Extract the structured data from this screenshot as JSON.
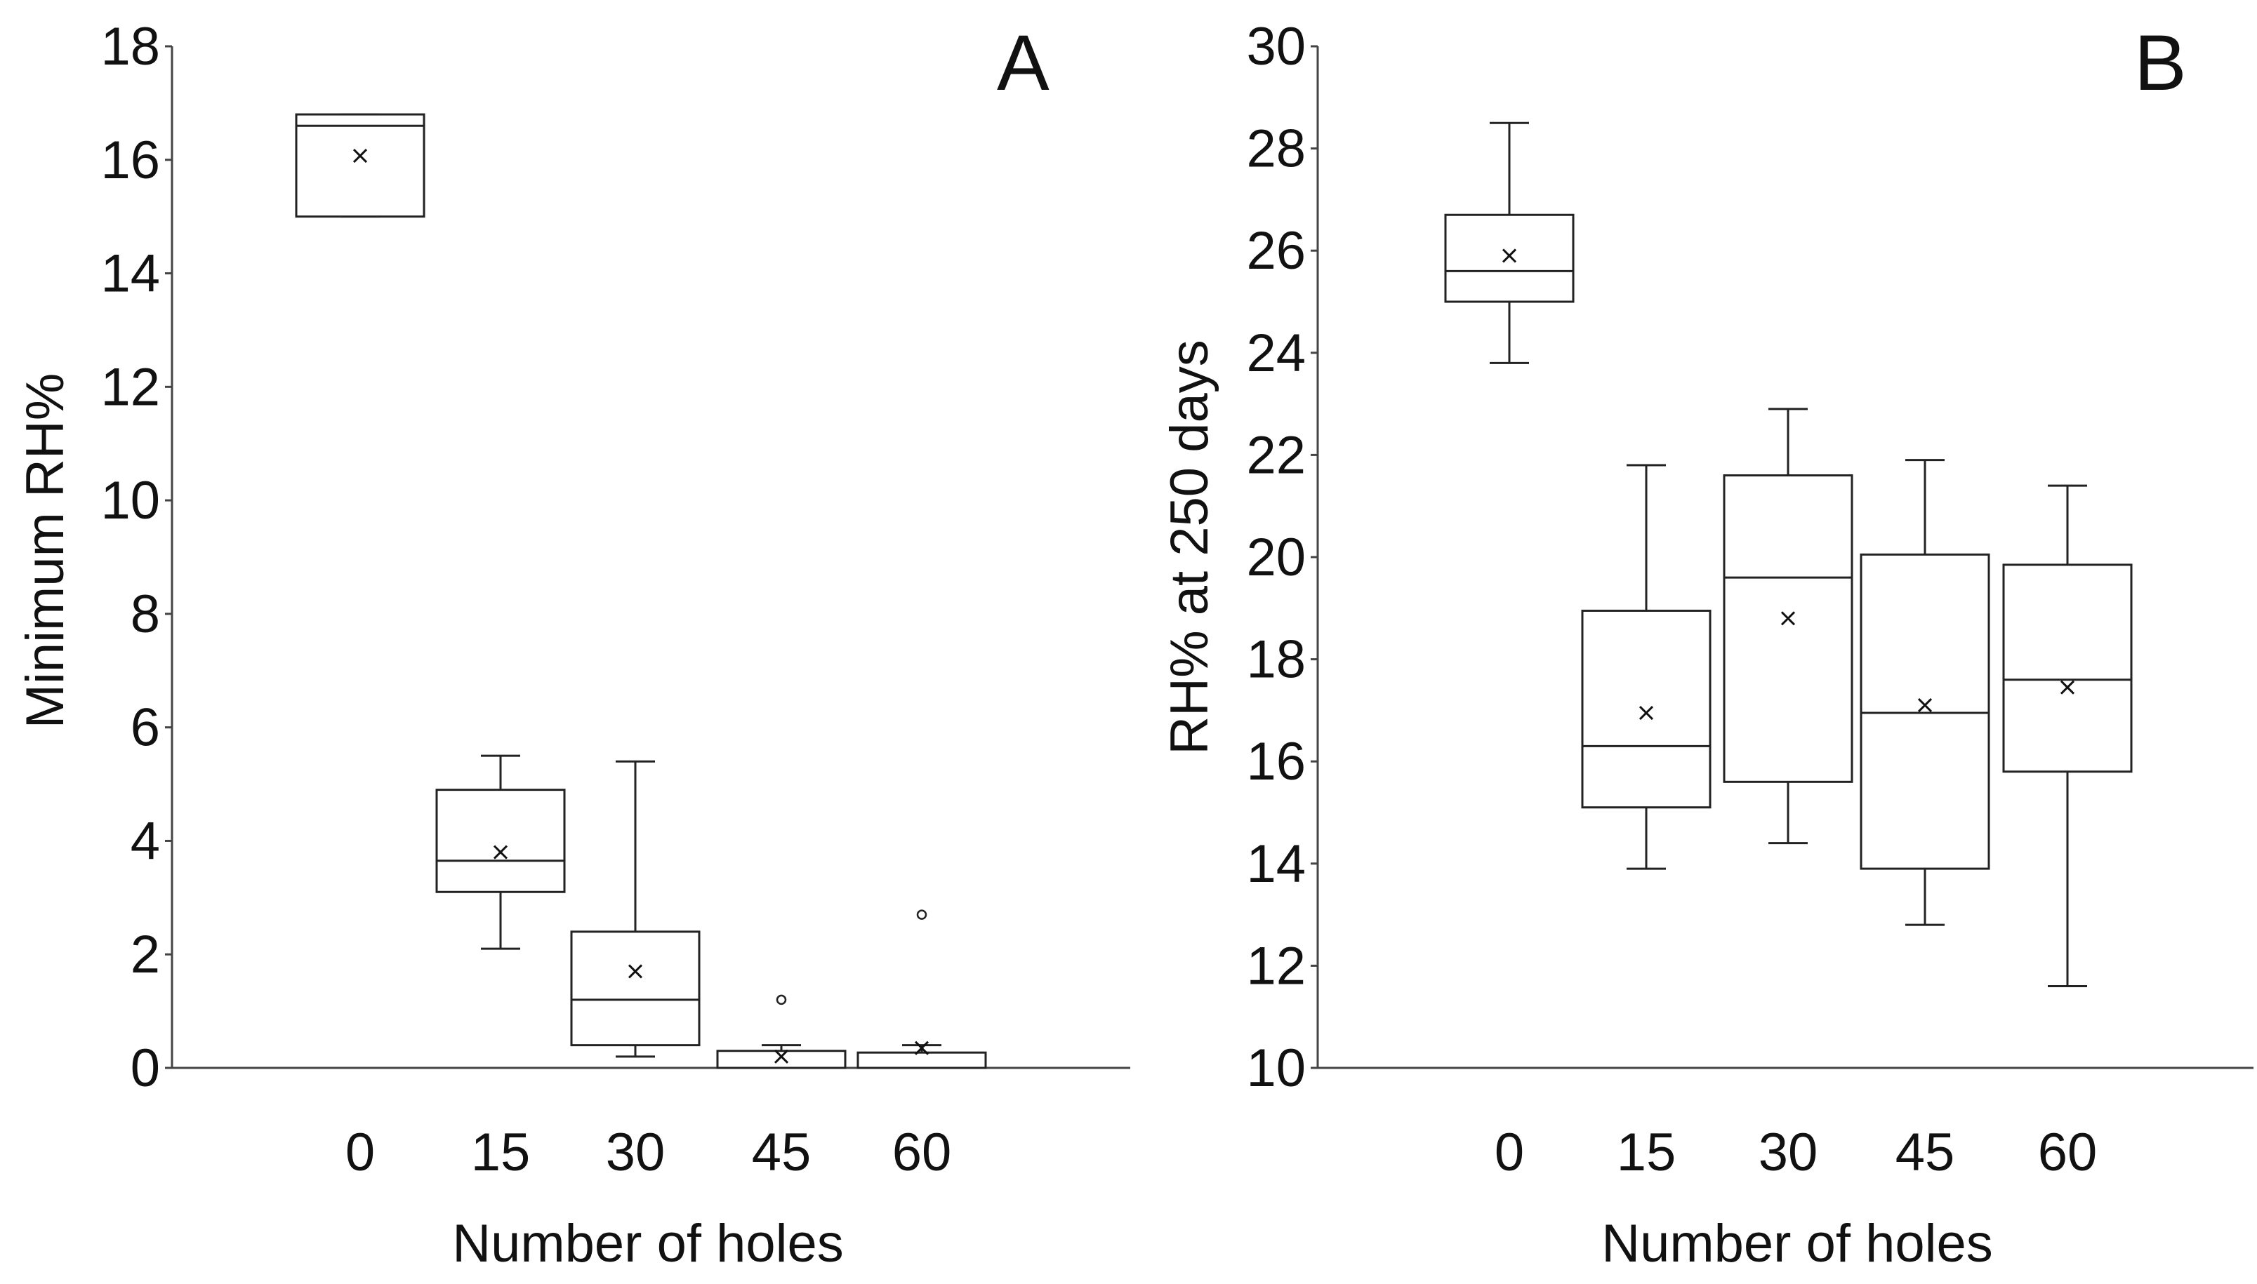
{
  "chart_data": [
    {
      "type": "box",
      "panel_label": "A",
      "title": "",
      "xlabel": "Number of holes",
      "ylabel": "Minimum RH%",
      "ylim": [
        0,
        18
      ],
      "yticks": [
        "0",
        "2",
        "4",
        "6",
        "8",
        "10",
        "12",
        "14",
        "16",
        "18"
      ],
      "categories": [
        "0",
        "15",
        "30",
        "45",
        "60"
      ],
      "boxes": [
        {
          "category": "0",
          "whisker_low": 15.0,
          "q1": 15.0,
          "median": 16.6,
          "q3": 16.8,
          "whisker_high": 16.8,
          "mean": 16.07,
          "outliers": []
        },
        {
          "category": "15",
          "whisker_low": 2.1,
          "q1": 3.1,
          "median": 3.65,
          "q3": 4.9,
          "whisker_high": 5.5,
          "mean": 3.8,
          "outliers": []
        },
        {
          "category": "30",
          "whisker_low": 0.2,
          "q1": 0.4,
          "median": 1.2,
          "q3": 2.4,
          "whisker_high": 5.4,
          "mean": 1.7,
          "outliers": []
        },
        {
          "category": "45",
          "whisker_low": 0.0,
          "q1": 0.0,
          "median": 0.0,
          "q3": 0.3,
          "whisker_high": 0.4,
          "mean": 0.2,
          "outliers": [
            1.2
          ]
        },
        {
          "category": "60",
          "whisker_low": 0.0,
          "q1": 0.0,
          "median": 0.0,
          "q3": 0.27,
          "whisker_high": 0.4,
          "mean": 0.35,
          "outliers": [
            2.7
          ]
        }
      ]
    },
    {
      "type": "box",
      "panel_label": "B",
      "title": "",
      "xlabel": "Number of holes",
      "ylabel": "RH% at  250 days",
      "ylim": [
        10,
        30
      ],
      "yticks": [
        "10",
        "12",
        "14",
        "16",
        "18",
        "20",
        "22",
        "24",
        "26",
        "28",
        "30"
      ],
      "categories": [
        "0",
        "15",
        "30",
        "45",
        "60"
      ],
      "boxes": [
        {
          "category": "0",
          "whisker_low": 23.8,
          "q1": 25.0,
          "median": 25.6,
          "q3": 26.7,
          "whisker_high": 28.5,
          "mean": 25.9,
          "outliers": []
        },
        {
          "category": "15",
          "whisker_low": 13.9,
          "q1": 15.1,
          "median": 16.3,
          "q3": 18.95,
          "whisker_high": 21.8,
          "mean": 16.95,
          "outliers": []
        },
        {
          "category": "30",
          "whisker_low": 14.4,
          "q1": 15.6,
          "median": 19.6,
          "q3": 21.6,
          "whisker_high": 22.9,
          "mean": 18.8,
          "outliers": []
        },
        {
          "category": "45",
          "whisker_low": 12.8,
          "q1": 13.9,
          "median": 16.95,
          "q3": 20.05,
          "whisker_high": 21.9,
          "mean": 17.1,
          "outliers": []
        },
        {
          "category": "60",
          "whisker_low": 11.6,
          "q1": 15.8,
          "median": 17.6,
          "q3": 19.85,
          "whisker_high": 21.4,
          "mean": 17.45,
          "outliers": []
        }
      ]
    }
  ]
}
